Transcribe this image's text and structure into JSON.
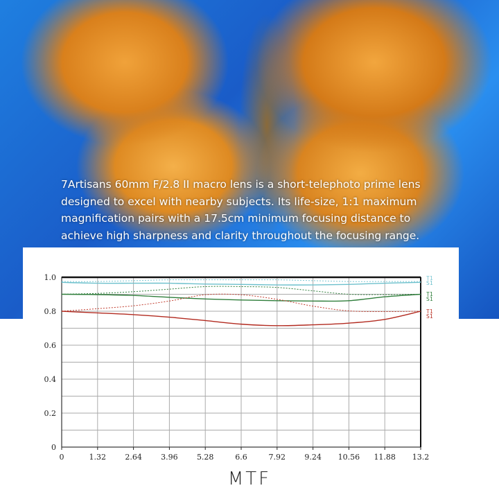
{
  "description_text": [
    "7Artisans  60mm F/2.8 II macro lens is a short-telephoto prime lens",
    "designed to excel with nearby subjects. Its life-size, 1:1 maximum",
    "magnification pairs with a 17.5cm minimum focusing distance to",
    "achieve high sharpness and clarity throughout the focusing range."
  ],
  "chart_data": {
    "type": "line",
    "title": "MTF",
    "xlabel": "",
    "ylabel": "",
    "xlim": [
      0,
      13.2
    ],
    "ylim": [
      0,
      1.0
    ],
    "x_ticks": [
      "0",
      "1.32",
      "2.64",
      "3.96",
      "5.28",
      "6.6",
      "7.92",
      "9.24",
      "10.56",
      "11.88",
      "13.2"
    ],
    "y_ticks": [
      "0",
      "0.2",
      "0.4",
      "0.6",
      "0.8",
      "1.0"
    ],
    "grid": true,
    "legend_placement": "right",
    "x": [
      0,
      1.32,
      2.64,
      3.96,
      5.28,
      6.6,
      7.92,
      9.24,
      10.56,
      11.88,
      13.2
    ],
    "series": [
      {
        "name": "T1",
        "group": "cyan",
        "color": "#7cc8d4",
        "dash": true,
        "values": [
          0.975,
          0.975,
          0.98,
          0.985,
          0.985,
          0.985,
          0.985,
          0.98,
          0.975,
          0.975,
          0.975
        ]
      },
      {
        "name": "S1",
        "group": "cyan",
        "color": "#6cc0cc",
        "dash": false,
        "values": [
          0.97,
          0.965,
          0.965,
          0.965,
          0.96,
          0.958,
          0.955,
          0.955,
          0.958,
          0.965,
          0.97
        ]
      },
      {
        "name": "T1",
        "group": "green",
        "color": "#2e7d3a",
        "dash": true,
        "values": [
          0.9,
          0.905,
          0.915,
          0.93,
          0.945,
          0.945,
          0.94,
          0.92,
          0.9,
          0.898,
          0.9
        ]
      },
      {
        "name": "S1",
        "group": "green",
        "color": "#2e7d3a",
        "dash": false,
        "values": [
          0.9,
          0.898,
          0.893,
          0.882,
          0.872,
          0.866,
          0.862,
          0.86,
          0.862,
          0.885,
          0.9
        ]
      },
      {
        "name": "T1",
        "group": "red",
        "color": "#c0392b",
        "dash": true,
        "values": [
          0.8,
          0.815,
          0.832,
          0.86,
          0.897,
          0.897,
          0.87,
          0.83,
          0.802,
          0.798,
          0.8
        ]
      },
      {
        "name": "S1",
        "group": "red",
        "color": "#b22a1f",
        "dash": false,
        "values": [
          0.8,
          0.79,
          0.78,
          0.765,
          0.745,
          0.724,
          0.715,
          0.72,
          0.73,
          0.752,
          0.8
        ]
      }
    ]
  }
}
